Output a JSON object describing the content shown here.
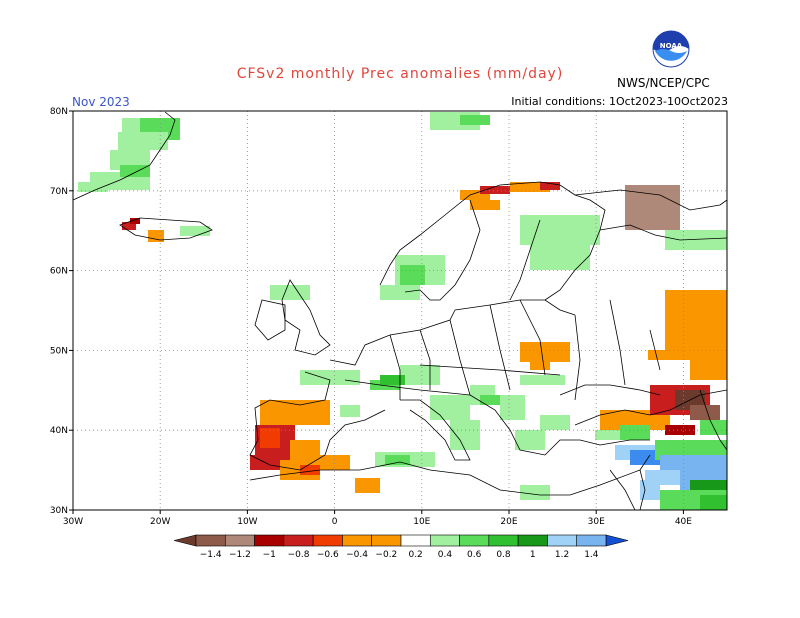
{
  "header": {
    "title": "CFSv2 monthly Prec anomalies (mm/day)",
    "month": "Nov 2023",
    "initial_conditions": "Initial conditions: 1Oct2023-10Oct2023",
    "agency": "NWS/NCEP/CPC",
    "logo_text": "NOAA"
  },
  "map": {
    "lat_labels": [
      "80N",
      "70N",
      "60N",
      "50N",
      "40N",
      "30N"
    ],
    "lon_labels": [
      "30W",
      "20W",
      "10W",
      "0",
      "10E",
      "20E",
      "30E",
      "40E"
    ],
    "grid": true
  },
  "legend": {
    "labels": [
      "−1.4",
      "−1.2",
      "−1",
      "−0.8",
      "−0.6",
      "−0.4",
      "−0.2",
      "0.2",
      "0.4",
      "0.6",
      "0.8",
      "1",
      "1.2",
      "1.4"
    ],
    "colors": [
      "#6b3a2c",
      "#8e5b4a",
      "#ae8878",
      "#a80000",
      "#c81e1e",
      "#f03c00",
      "#fa9600",
      "#ffffff",
      "#a0f0a0",
      "#5adc5a",
      "#30c030",
      "#189818",
      "#a0d2f8",
      "#78b4f0",
      "#3c8cf0",
      "#1450d2"
    ]
  }
}
